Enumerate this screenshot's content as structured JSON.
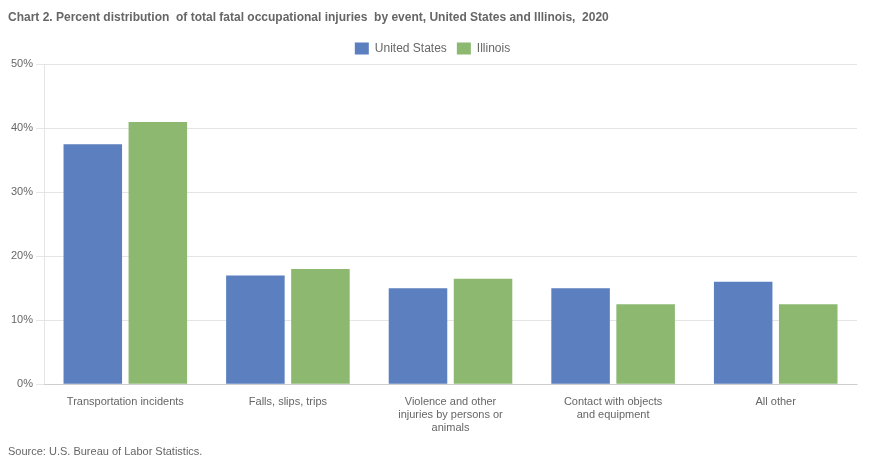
{
  "chart_data": {
    "type": "bar",
    "title": "Chart 2. Percent distribution  of total fatal occupational injuries  by event, United States and Illinois,  2020",
    "annotations": [
      "Source: U.S. Bureau of Labor Statistics."
    ],
    "categories": [
      "Transportation incidents",
      "Falls, slips, trips",
      "Violence and other\ninjuries by persons or\nanimals",
      "Contact with objects\nand equipment",
      "All other"
    ],
    "series": [
      {
        "name": "United States",
        "color": "#5B7FBF",
        "values": [
          37.5,
          17.0,
          15.0,
          15.0,
          16.0
        ]
      },
      {
        "name": "Illinois",
        "color": "#8CB870",
        "values": [
          41.0,
          18.0,
          16.5,
          12.5,
          12.5
        ]
      }
    ],
    "ylim": [
      0,
      50
    ],
    "yticks": [
      {
        "value": 0,
        "label": "0%"
      },
      {
        "value": 10,
        "label": "10%"
      },
      {
        "value": 20,
        "label": "20%"
      },
      {
        "value": 30,
        "label": "30%"
      },
      {
        "value": 40,
        "label": "40%"
      },
      {
        "value": 50,
        "label": "50%"
      }
    ],
    "grid": true,
    "legend": "top"
  }
}
